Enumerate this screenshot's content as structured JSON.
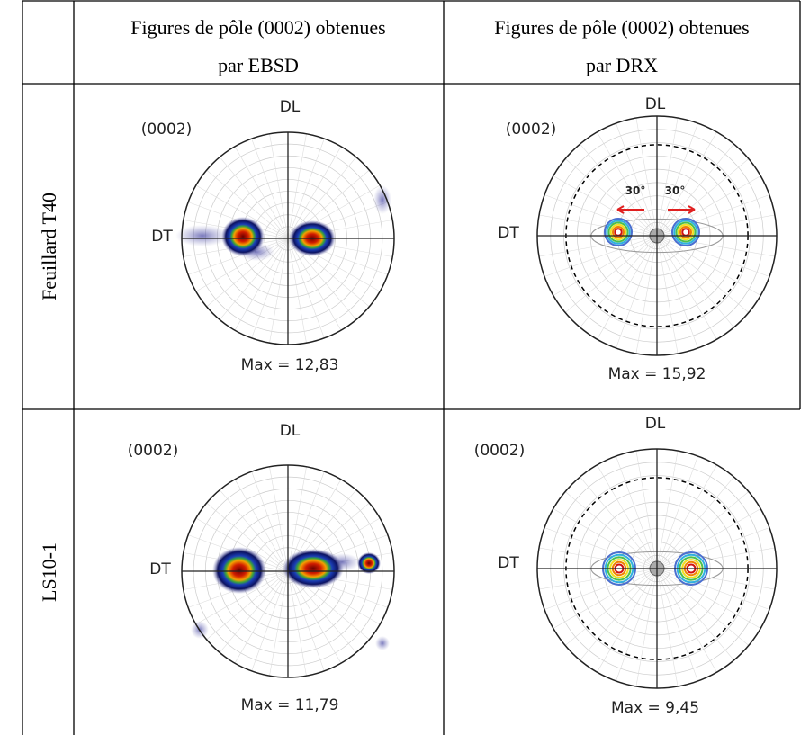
{
  "table": {
    "header": [
      "",
      "Figures de pôle (0002) obtenues",
      "par EBSD",
      "Figures de pôle (0002) obtenues",
      "par DRX"
    ],
    "rows": [
      {
        "label": "Feuillard T40",
        "cells": [
          {
            "dl": "DL",
            "pole": "(0002)",
            "dt": "DT",
            "max": "Max = 12,83"
          },
          {
            "dl": "DL",
            "pole": "(0002)",
            "dt": "DT",
            "max": "Max = 15,92",
            "angles": [
              "30°",
              "30°"
            ]
          }
        ]
      },
      {
        "label": "LS10-1",
        "cells": [
          {
            "dl": "DL",
            "pole": "(0002)",
            "dt": "DT",
            "max": "Max = 11,79"
          },
          {
            "dl": "DL",
            "pole": "(0002)",
            "dt": "DT",
            "max": "Max = 9,45"
          }
        ]
      }
    ]
  }
}
